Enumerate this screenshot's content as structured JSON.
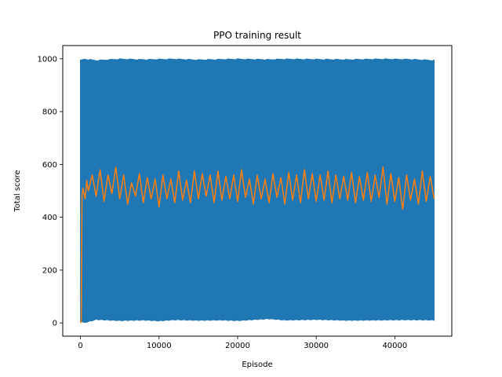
{
  "chart_data": {
    "type": "line",
    "title": "PPO training result",
    "xlabel": "Episode",
    "ylabel": "Total score",
    "xlim": [
      -2250,
      47250
    ],
    "ylim": [
      -50,
      1050
    ],
    "x_ticks": [
      0,
      10000,
      20000,
      30000,
      40000
    ],
    "x_tick_labels": [
      "0",
      "10000",
      "20000",
      "30000",
      "40000"
    ],
    "y_ticks": [
      0,
      200,
      400,
      600,
      800,
      1000
    ],
    "y_tick_labels": [
      "0",
      "200",
      "400",
      "600",
      "800",
      "1000"
    ],
    "grid": false,
    "legend": "none",
    "series": [
      {
        "color": "#1f77b4",
        "x_range": [
          0,
          45000
        ],
        "envelope_min": [
          [
            0,
            5
          ],
          [
            500,
            0
          ],
          [
            2000,
            12
          ],
          [
            5000,
            8
          ],
          [
            8000,
            10
          ],
          [
            10000,
            7
          ],
          [
            12000,
            11
          ],
          [
            15000,
            9
          ],
          [
            18000,
            10
          ],
          [
            20000,
            8
          ],
          [
            24000,
            15
          ],
          [
            26000,
            10
          ],
          [
            30000,
            12
          ],
          [
            34000,
            9
          ],
          [
            38000,
            10
          ],
          [
            42000,
            11
          ],
          [
            45000,
            10
          ]
        ],
        "envelope_max": [
          [
            0,
            995
          ],
          [
            500,
            1000
          ],
          [
            2000,
            995
          ],
          [
            5000,
            1000
          ],
          [
            8000,
            998
          ],
          [
            10000,
            999
          ],
          [
            12000,
            1000
          ],
          [
            15000,
            997
          ],
          [
            18000,
            999
          ],
          [
            20000,
            1000
          ],
          [
            24000,
            998
          ],
          [
            26000,
            1000
          ],
          [
            30000,
            999
          ],
          [
            34000,
            998
          ],
          [
            38000,
            1000
          ],
          [
            42000,
            999
          ],
          [
            45000,
            995
          ]
        ]
      },
      {
        "color": "#ff7f0e",
        "points": [
          [
            0,
            0
          ],
          [
            100,
            5
          ],
          [
            200,
            480
          ],
          [
            300,
            510
          ],
          [
            600,
            470
          ],
          [
            800,
            540
          ],
          [
            1000,
            500
          ],
          [
            1500,
            560
          ],
          [
            2000,
            480
          ],
          [
            2500,
            580
          ],
          [
            3000,
            460
          ],
          [
            3500,
            560
          ],
          [
            4000,
            490
          ],
          [
            4500,
            590
          ],
          [
            5000,
            470
          ],
          [
            5500,
            560
          ],
          [
            6000,
            450
          ],
          [
            6500,
            530
          ],
          [
            7000,
            480
          ],
          [
            7500,
            565
          ],
          [
            8000,
            455
          ],
          [
            8500,
            550
          ],
          [
            9000,
            470
          ],
          [
            9500,
            545
          ],
          [
            10000,
            440
          ],
          [
            10500,
            560
          ],
          [
            11000,
            470
          ],
          [
            11500,
            545
          ],
          [
            12000,
            455
          ],
          [
            12500,
            575
          ],
          [
            13000,
            465
          ],
          [
            13500,
            540
          ],
          [
            14000,
            455
          ],
          [
            14500,
            575
          ],
          [
            15000,
            470
          ],
          [
            15500,
            565
          ],
          [
            16000,
            480
          ],
          [
            16500,
            560
          ],
          [
            17000,
            455
          ],
          [
            17500,
            575
          ],
          [
            18000,
            465
          ],
          [
            18500,
            555
          ],
          [
            19000,
            470
          ],
          [
            19500,
            560
          ],
          [
            20000,
            460
          ],
          [
            20500,
            580
          ],
          [
            21000,
            475
          ],
          [
            21500,
            545
          ],
          [
            22000,
            450
          ],
          [
            22500,
            560
          ],
          [
            23000,
            470
          ],
          [
            23500,
            545
          ],
          [
            24000,
            455
          ],
          [
            24500,
            565
          ],
          [
            25000,
            475
          ],
          [
            25500,
            550
          ],
          [
            26000,
            450
          ],
          [
            26500,
            570
          ],
          [
            27000,
            465
          ],
          [
            27500,
            560
          ],
          [
            28000,
            455
          ],
          [
            28500,
            580
          ],
          [
            29000,
            470
          ],
          [
            29500,
            565
          ],
          [
            30000,
            460
          ],
          [
            30500,
            560
          ],
          [
            31000,
            465
          ],
          [
            31500,
            575
          ],
          [
            32000,
            455
          ],
          [
            32500,
            560
          ],
          [
            33000,
            470
          ],
          [
            33500,
            555
          ],
          [
            34000,
            465
          ],
          [
            34500,
            570
          ],
          [
            35000,
            455
          ],
          [
            35500,
            555
          ],
          [
            36000,
            465
          ],
          [
            36500,
            570
          ],
          [
            37000,
            460
          ],
          [
            37500,
            560
          ],
          [
            38000,
            475
          ],
          [
            38500,
            590
          ],
          [
            39000,
            450
          ],
          [
            39500,
            565
          ],
          [
            40000,
            460
          ],
          [
            40500,
            550
          ],
          [
            41000,
            430
          ],
          [
            41500,
            560
          ],
          [
            42000,
            465
          ],
          [
            42500,
            545
          ],
          [
            43000,
            450
          ],
          [
            43500,
            575
          ],
          [
            44000,
            460
          ],
          [
            44500,
            555
          ],
          [
            45000,
            470
          ]
        ]
      }
    ]
  }
}
